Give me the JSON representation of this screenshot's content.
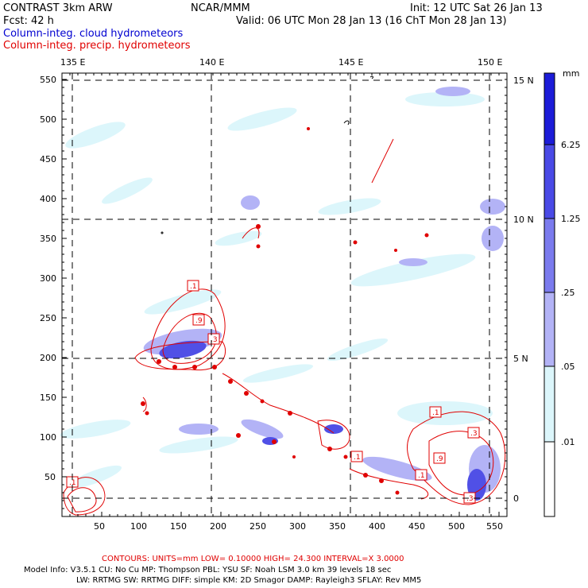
{
  "header": {
    "model": "CONTRAST  3km ARW",
    "org": "NCAR/MMM",
    "init": "Init: 12 UTC Sat 26 Jan 13",
    "fcst": "Fcst:   42 h",
    "valid": "Valid: 06 UTC Mon 28 Jan 13 (16 ChT Mon 28 Jan 13)",
    "legend_cloud": "Column-integ. cloud hydrometeors",
    "legend_precip": "Column-integ. precip. hydrometeors"
  },
  "map": {
    "lon_labels": [
      "135 E",
      "140 E",
      "145 E",
      "150 E"
    ],
    "lat_labels": [
      "15 N",
      "10 N",
      "5 N",
      "0"
    ],
    "x_ticks": [
      "50",
      "100",
      "150",
      "200",
      "250",
      "300",
      "350",
      "400",
      "450",
      "500",
      "550"
    ],
    "y_ticks": [
      "550",
      "500",
      "450",
      "400",
      "350",
      "300",
      "250",
      "200",
      "150",
      "100",
      "50"
    ],
    "contour_labels": [
      ".1",
      ".9",
      ".3",
      ".1",
      ".1",
      ".3",
      ".9",
      ".1",
      ".1",
      ".3"
    ],
    "colors": {
      "cloud": "#4040e0",
      "precip": "#e00000",
      "grid": "#000000"
    }
  },
  "colorbar": {
    "unit": "mm",
    "levels": [
      "6.25",
      "1.25",
      ".25",
      ".05",
      ".01"
    ],
    "colors": [
      "#1c1cd8",
      "#4a4ae6",
      "#7b7bee",
      "#b3b3f6",
      "#dcf6fb",
      "#ffffff"
    ]
  },
  "footer": {
    "contours": "CONTOURS:  UNITS=mm  LOW= 0.10000       HIGH=  24.300       INTERVAL=X  3.0000",
    "line1": "Model Info: V3.5.1     CU: No Cu      MP: Thompson     PBL: YSU       SF: Noah LSM      3.0 km   39 levels    18 sec",
    "line2": "LW: RRTMG     SW: RRTMG   DIFF: simple KM: 2D Smagor DAMP: Rayleigh3   SFLAY: Rev MM5"
  }
}
